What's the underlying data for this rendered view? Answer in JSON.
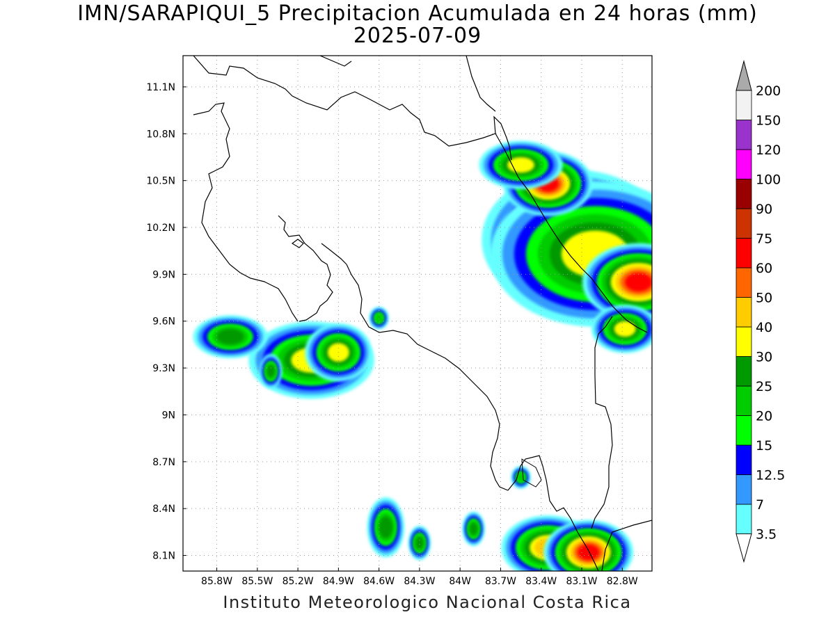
{
  "title": {
    "line1": "IMN/SARAPIQUI_5 Precipitacion Acumulada en 24 horas (mm)",
    "line2": "2025-07-09"
  },
  "footer": "Instituto Meteorologico Nacional Costa Rica",
  "map": {
    "lon_range": [
      -86.05,
      -82.58
    ],
    "lat_range": [
      8.0,
      11.3
    ],
    "lon_ticks": [
      {
        "v": -85.8,
        "label": "85.8W"
      },
      {
        "v": -85.5,
        "label": "85.5W"
      },
      {
        "v": -85.2,
        "label": "85.2W"
      },
      {
        "v": -84.9,
        "label": "84.9W"
      },
      {
        "v": -84.6,
        "label": "84.6W"
      },
      {
        "v": -84.3,
        "label": "84.3W"
      },
      {
        "v": -84.0,
        "label": "84W"
      },
      {
        "v": -83.7,
        "label": "83.7W"
      },
      {
        "v": -83.4,
        "label": "83.4W"
      },
      {
        "v": -83.1,
        "label": "83.1W"
      },
      {
        "v": -82.8,
        "label": "82.8W"
      }
    ],
    "lat_ticks": [
      {
        "v": 8.1,
        "label": "8.1N"
      },
      {
        "v": 8.4,
        "label": "8.4N"
      },
      {
        "v": 8.7,
        "label": "8.7N"
      },
      {
        "v": 9.0,
        "label": "9N"
      },
      {
        "v": 9.3,
        "label": "9.3N"
      },
      {
        "v": 9.6,
        "label": "9.6N"
      },
      {
        "v": 9.9,
        "label": "9.9N"
      },
      {
        "v": 10.2,
        "label": "10.2N"
      },
      {
        "v": 10.5,
        "label": "10.5N"
      },
      {
        "v": 10.8,
        "label": "10.8N"
      },
      {
        "v": 11.1,
        "label": "11.1N"
      }
    ],
    "grid": "dotted"
  },
  "colorbar": {
    "labels": [
      "3.5",
      "7",
      "12.5",
      "15",
      "20",
      "25",
      "30",
      "40",
      "50",
      "60",
      "75",
      "90",
      "100",
      "120",
      "150",
      "200"
    ],
    "colors": [
      "#66ffff",
      "#3399ff",
      "#0000ff",
      "#00ff00",
      "#00cc00",
      "#009900",
      "#ffff00",
      "#ffcc00",
      "#ff6600",
      "#ff0000",
      "#cc3300",
      "#990000",
      "#ff00ff",
      "#9933cc",
      "#f2f2f2",
      "#aaaaaa"
    ]
  },
  "rain_cells": [
    {
      "lon": -83.15,
      "lat": 10.12,
      "mm": 40,
      "rx": 0.2,
      "ry": 0.13
    },
    {
      "lon": -83.0,
      "lat": 10.03,
      "mm": 30,
      "rx": 0.25,
      "ry": 0.15
    },
    {
      "lon": -82.68,
      "lat": 9.85,
      "mm": 60,
      "rx": 0.1,
      "ry": 0.06
    },
    {
      "lon": -83.35,
      "lat": 10.48,
      "mm": 60,
      "rx": 0.08,
      "ry": 0.05
    },
    {
      "lon": -83.55,
      "lat": 10.6,
      "mm": 30,
      "rx": 0.1,
      "ry": 0.05
    },
    {
      "lon": -82.78,
      "lat": 9.55,
      "mm": 30,
      "rx": 0.08,
      "ry": 0.05
    },
    {
      "lon": -85.1,
      "lat": 9.35,
      "mm": 30,
      "rx": 0.15,
      "ry": 0.08
    },
    {
      "lon": -84.9,
      "lat": 9.4,
      "mm": 30,
      "rx": 0.08,
      "ry": 0.06
    },
    {
      "lon": -85.7,
      "lat": 9.5,
      "mm": 25,
      "rx": 0.1,
      "ry": 0.05
    },
    {
      "lon": -85.4,
      "lat": 9.28,
      "mm": 25,
      "rx": 0.03,
      "ry": 0.04
    },
    {
      "lon": -84.55,
      "lat": 8.28,
      "mm": 25,
      "rx": 0.05,
      "ry": 0.07
    },
    {
      "lon": -84.3,
      "lat": 8.18,
      "mm": 25,
      "rx": 0.03,
      "ry": 0.04
    },
    {
      "lon": -83.9,
      "lat": 8.27,
      "mm": 25,
      "rx": 0.03,
      "ry": 0.04
    },
    {
      "lon": -83.35,
      "lat": 8.15,
      "mm": 40,
      "rx": 0.1,
      "ry": 0.06
    },
    {
      "lon": -83.05,
      "lat": 8.12,
      "mm": 60,
      "rx": 0.08,
      "ry": 0.05
    },
    {
      "lon": -83.55,
      "lat": 8.6,
      "mm": 20,
      "rx": 0.03,
      "ry": 0.03
    },
    {
      "lon": -84.6,
      "lat": 9.62,
      "mm": 20,
      "rx": 0.03,
      "ry": 0.03
    }
  ]
}
